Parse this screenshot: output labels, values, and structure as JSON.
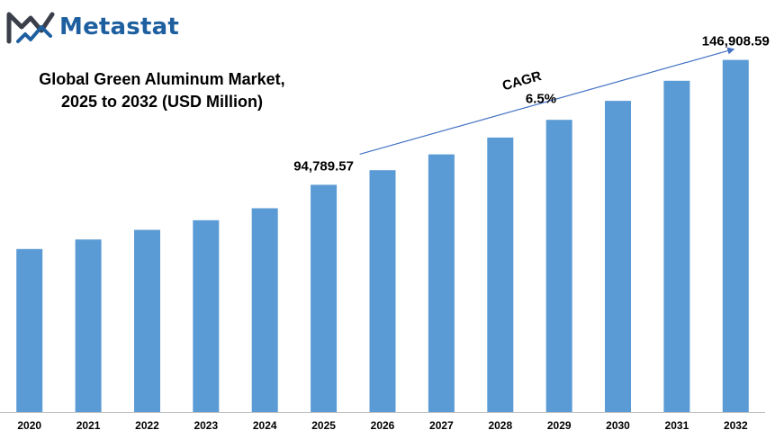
{
  "brand": {
    "name": "Metastat",
    "logo_icon": "metastat-m-logo-icon",
    "color": "#1e5fa0"
  },
  "title_line1": "Global Green Aluminum Market,",
  "title_line2": "2025 to 2032 (USD Million)",
  "chart_data": {
    "type": "bar",
    "categories": [
      "2020",
      "2021",
      "2022",
      "2023",
      "2024",
      "2025",
      "2026",
      "2027",
      "2028",
      "2029",
      "2030",
      "2031",
      "2032"
    ],
    "values": [
      68000,
      72000,
      76000,
      80000,
      85000,
      94789.57,
      100900,
      107500,
      114500,
      121900,
      129800,
      138200,
      146908.59
    ],
    "ylim": [
      0,
      155000
    ],
    "bar_color": "#5b9bd5",
    "grid": false,
    "legend": "none",
    "data_labels": [
      {
        "category": "2025",
        "text": "94,789.57"
      },
      {
        "category": "2032",
        "text": "146,908.59"
      }
    ],
    "annotation": {
      "label": "CAGR",
      "value": "6.5%",
      "from": "2025",
      "to": "2032",
      "arrow_color": "#4472c4"
    }
  }
}
